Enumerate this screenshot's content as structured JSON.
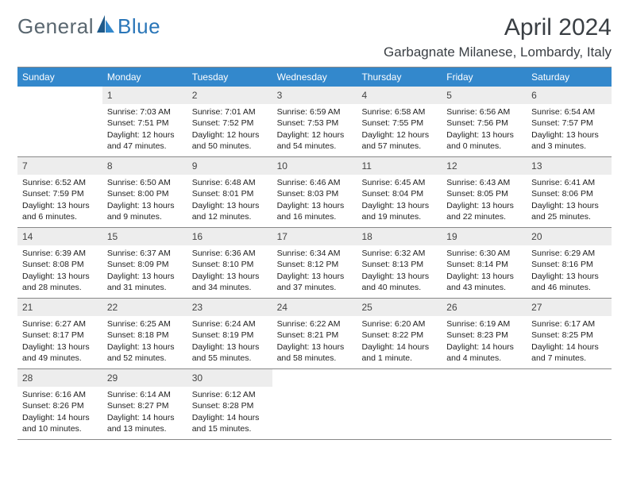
{
  "logo": {
    "part1": "General",
    "part2": "Blue"
  },
  "title": "April 2024",
  "location": "Garbagnate Milanese, Lombardy, Italy",
  "colors": {
    "header_bg": "#3388cc",
    "header_text": "#ffffff",
    "daynum_bg": "#ededed",
    "border": "#888888",
    "logo_gray": "#5a6770",
    "logo_blue": "#2a76b8",
    "sail_dark": "#1f5a8a",
    "sail_light": "#3388cc"
  },
  "weekdays": [
    "Sunday",
    "Monday",
    "Tuesday",
    "Wednesday",
    "Thursday",
    "Friday",
    "Saturday"
  ],
  "weeks": [
    [
      null,
      {
        "n": "1",
        "sunrise": "7:03 AM",
        "sunset": "7:51 PM",
        "daylight": "12 hours and 47 minutes."
      },
      {
        "n": "2",
        "sunrise": "7:01 AM",
        "sunset": "7:52 PM",
        "daylight": "12 hours and 50 minutes."
      },
      {
        "n": "3",
        "sunrise": "6:59 AM",
        "sunset": "7:53 PM",
        "daylight": "12 hours and 54 minutes."
      },
      {
        "n": "4",
        "sunrise": "6:58 AM",
        "sunset": "7:55 PM",
        "daylight": "12 hours and 57 minutes."
      },
      {
        "n": "5",
        "sunrise": "6:56 AM",
        "sunset": "7:56 PM",
        "daylight": "13 hours and 0 minutes."
      },
      {
        "n": "6",
        "sunrise": "6:54 AM",
        "sunset": "7:57 PM",
        "daylight": "13 hours and 3 minutes."
      }
    ],
    [
      {
        "n": "7",
        "sunrise": "6:52 AM",
        "sunset": "7:59 PM",
        "daylight": "13 hours and 6 minutes."
      },
      {
        "n": "8",
        "sunrise": "6:50 AM",
        "sunset": "8:00 PM",
        "daylight": "13 hours and 9 minutes."
      },
      {
        "n": "9",
        "sunrise": "6:48 AM",
        "sunset": "8:01 PM",
        "daylight": "13 hours and 12 minutes."
      },
      {
        "n": "10",
        "sunrise": "6:46 AM",
        "sunset": "8:03 PM",
        "daylight": "13 hours and 16 minutes."
      },
      {
        "n": "11",
        "sunrise": "6:45 AM",
        "sunset": "8:04 PM",
        "daylight": "13 hours and 19 minutes."
      },
      {
        "n": "12",
        "sunrise": "6:43 AM",
        "sunset": "8:05 PM",
        "daylight": "13 hours and 22 minutes."
      },
      {
        "n": "13",
        "sunrise": "6:41 AM",
        "sunset": "8:06 PM",
        "daylight": "13 hours and 25 minutes."
      }
    ],
    [
      {
        "n": "14",
        "sunrise": "6:39 AM",
        "sunset": "8:08 PM",
        "daylight": "13 hours and 28 minutes."
      },
      {
        "n": "15",
        "sunrise": "6:37 AM",
        "sunset": "8:09 PM",
        "daylight": "13 hours and 31 minutes."
      },
      {
        "n": "16",
        "sunrise": "6:36 AM",
        "sunset": "8:10 PM",
        "daylight": "13 hours and 34 minutes."
      },
      {
        "n": "17",
        "sunrise": "6:34 AM",
        "sunset": "8:12 PM",
        "daylight": "13 hours and 37 minutes."
      },
      {
        "n": "18",
        "sunrise": "6:32 AM",
        "sunset": "8:13 PM",
        "daylight": "13 hours and 40 minutes."
      },
      {
        "n": "19",
        "sunrise": "6:30 AM",
        "sunset": "8:14 PM",
        "daylight": "13 hours and 43 minutes."
      },
      {
        "n": "20",
        "sunrise": "6:29 AM",
        "sunset": "8:16 PM",
        "daylight": "13 hours and 46 minutes."
      }
    ],
    [
      {
        "n": "21",
        "sunrise": "6:27 AM",
        "sunset": "8:17 PM",
        "daylight": "13 hours and 49 minutes."
      },
      {
        "n": "22",
        "sunrise": "6:25 AM",
        "sunset": "8:18 PM",
        "daylight": "13 hours and 52 minutes."
      },
      {
        "n": "23",
        "sunrise": "6:24 AM",
        "sunset": "8:19 PM",
        "daylight": "13 hours and 55 minutes."
      },
      {
        "n": "24",
        "sunrise": "6:22 AM",
        "sunset": "8:21 PM",
        "daylight": "13 hours and 58 minutes."
      },
      {
        "n": "25",
        "sunrise": "6:20 AM",
        "sunset": "8:22 PM",
        "daylight": "14 hours and 1 minute."
      },
      {
        "n": "26",
        "sunrise": "6:19 AM",
        "sunset": "8:23 PM",
        "daylight": "14 hours and 4 minutes."
      },
      {
        "n": "27",
        "sunrise": "6:17 AM",
        "sunset": "8:25 PM",
        "daylight": "14 hours and 7 minutes."
      }
    ],
    [
      {
        "n": "28",
        "sunrise": "6:16 AM",
        "sunset": "8:26 PM",
        "daylight": "14 hours and 10 minutes."
      },
      {
        "n": "29",
        "sunrise": "6:14 AM",
        "sunset": "8:27 PM",
        "daylight": "14 hours and 13 minutes."
      },
      {
        "n": "30",
        "sunrise": "6:12 AM",
        "sunset": "8:28 PM",
        "daylight": "14 hours and 15 minutes."
      },
      null,
      null,
      null,
      null
    ]
  ],
  "labels": {
    "sunrise": "Sunrise:",
    "sunset": "Sunset:",
    "daylight": "Daylight:"
  }
}
